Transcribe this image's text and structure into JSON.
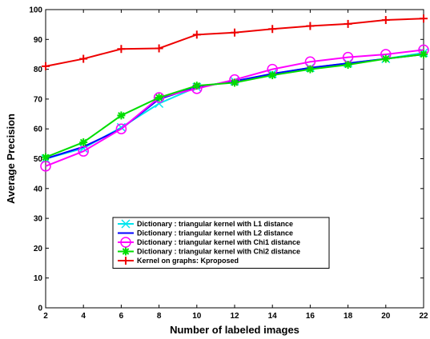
{
  "chart_data": {
    "type": "line",
    "title": "",
    "xlabel": "Number of labeled images",
    "ylabel": "Average Precision",
    "xlim": [
      2,
      22
    ],
    "ylim": [
      0,
      100
    ],
    "xticks": [
      2,
      4,
      6,
      8,
      10,
      12,
      14,
      16,
      18,
      20,
      22
    ],
    "yticks": [
      0,
      10,
      20,
      30,
      40,
      50,
      60,
      70,
      80,
      90,
      100
    ],
    "grid": false,
    "legend_position": "lower-center",
    "x": [
      2,
      4,
      6,
      8,
      10,
      12,
      14,
      16,
      18,
      20,
      22
    ],
    "series": [
      {
        "name": "Dictionary : triangular kernel with L1 distance",
        "color": "#00e5ee",
        "marker": "x",
        "values": [
          50,
          53.5,
          60.5,
          68.5,
          74,
          76,
          78.5,
          80.5,
          82,
          83.5,
          85.5
        ]
      },
      {
        "name": "Dictionary : triangular kernel with L2 distance",
        "color": "#0000ff",
        "marker": "none",
        "values": [
          50,
          54,
          60,
          70,
          74,
          76,
          78.5,
          80.5,
          82,
          83.5,
          85
        ]
      },
      {
        "name": "Dictionary : triangular kernel with Chi1 distance",
        "color": "#ff00ff",
        "marker": "circle",
        "values": [
          47.5,
          52.5,
          60,
          70.5,
          73.5,
          76.5,
          80,
          82.5,
          84,
          85,
          86.5
        ]
      },
      {
        "name": "Dictionary : triangular kernel with Chi2 distance",
        "color": "#00dd00",
        "marker": "asterisk",
        "values": [
          50.5,
          55.5,
          64.5,
          70.5,
          74.5,
          75.5,
          78,
          80,
          81.5,
          83.5,
          85
        ]
      },
      {
        "name": "Kernel on graphs: Kproposed",
        "color": "#ee0000",
        "marker": "plus",
        "values": [
          81,
          83.5,
          86.8,
          87,
          91.6,
          92.3,
          93.5,
          94.5,
          95.2,
          96.5,
          97
        ]
      }
    ]
  }
}
